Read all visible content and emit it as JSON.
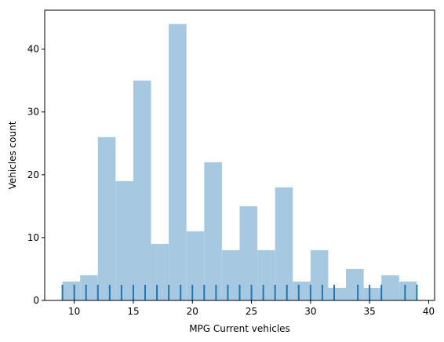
{
  "chart_data": {
    "type": "bar",
    "subtype": "histogram-with-rug",
    "title": "",
    "xlabel": "MPG Current vehicles",
    "ylabel": "Vehicles count",
    "xlim": [
      7.5,
      40.5
    ],
    "ylim": [
      0,
      46.2
    ],
    "xticks": [
      10,
      15,
      20,
      25,
      30,
      35,
      40
    ],
    "yticks": [
      0,
      10,
      20,
      30,
      40
    ],
    "grid": false,
    "legend": "none",
    "bar_color": "#a6c8e0",
    "rug_color": "#1f77b4",
    "bins": [
      {
        "start": 9.0,
        "end": 10.5,
        "count": 3
      },
      {
        "start": 10.5,
        "end": 12.0,
        "count": 4
      },
      {
        "start": 12.0,
        "end": 13.5,
        "count": 26
      },
      {
        "start": 13.5,
        "end": 15.0,
        "count": 19
      },
      {
        "start": 15.0,
        "end": 16.5,
        "count": 35
      },
      {
        "start": 16.5,
        "end": 18.0,
        "count": 9
      },
      {
        "start": 18.0,
        "end": 19.5,
        "count": 44
      },
      {
        "start": 19.5,
        "end": 21.0,
        "count": 11
      },
      {
        "start": 21.0,
        "end": 22.5,
        "count": 22
      },
      {
        "start": 22.5,
        "end": 24.0,
        "count": 8
      },
      {
        "start": 24.0,
        "end": 25.5,
        "count": 15
      },
      {
        "start": 25.5,
        "end": 27.0,
        "count": 8
      },
      {
        "start": 27.0,
        "end": 28.5,
        "count": 18
      },
      {
        "start": 28.5,
        "end": 30.0,
        "count": 3
      },
      {
        "start": 30.0,
        "end": 31.5,
        "count": 8
      },
      {
        "start": 31.5,
        "end": 33.0,
        "count": 2
      },
      {
        "start": 33.0,
        "end": 34.5,
        "count": 5
      },
      {
        "start": 34.5,
        "end": 36.0,
        "count": 2
      },
      {
        "start": 36.0,
        "end": 37.5,
        "count": 4
      },
      {
        "start": 37.5,
        "end": 39.0,
        "count": 3
      }
    ],
    "rug_values": [
      9,
      10,
      11,
      12,
      13,
      14,
      15,
      16,
      17,
      18,
      19,
      20,
      21,
      22,
      23,
      24,
      25,
      26,
      27,
      28,
      29,
      30,
      31,
      32,
      34,
      35,
      36,
      38,
      39
    ]
  }
}
